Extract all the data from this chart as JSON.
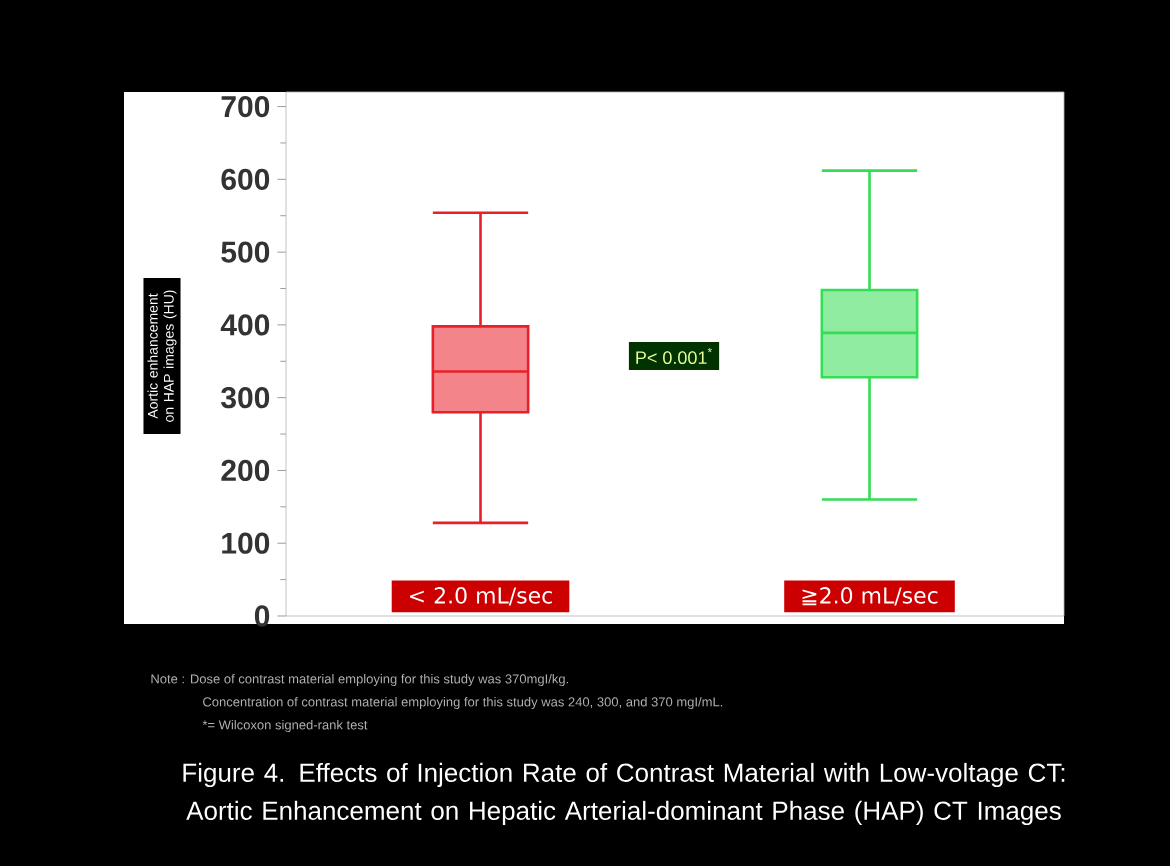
{
  "chart_data": {
    "type": "box",
    "title": "Figure 4. Effects of Injection Rate of Contrast Material with Low-voltage CT: Aortic Enhancement on Hepatic Arterial-dominant Phase (HAP) CT Images",
    "ylabel": "Aortic enhancement on HAP images (HU)",
    "categories": [
      "< 2.0 mL/sec",
      "≧2.0 mL/sec"
    ],
    "boxes": [
      {
        "low": 128,
        "q1": 280,
        "median": 336,
        "q3": 398,
        "high": 554
      },
      {
        "low": 160,
        "q1": 328,
        "median": 389,
        "q3": 448,
        "high": 612
      }
    ],
    "colors": [
      "#e8202a",
      "#33dd55"
    ],
    "ylim": [
      0,
      720
    ],
    "yticks": [
      0,
      100,
      200,
      300,
      400,
      500,
      600,
      700
    ],
    "grid": false,
    "annotations": [
      "P< 0.001$^{*}$",
      "Note : Dose of contrast material employing for this study was 370mgI/kg.",
      "Concentration of contrast material employing for this study was 240, 300, and 370 mgI/mL.",
      "*= Wilcoxon signed-rank test"
    ]
  }
}
